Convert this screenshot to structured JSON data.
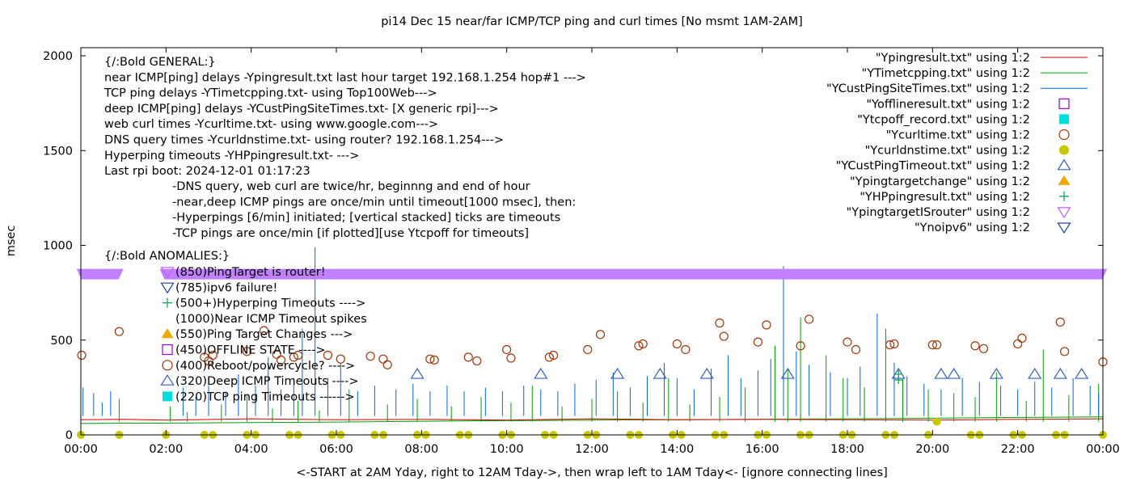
{
  "chart_data": {
    "type": "line",
    "title": "pi14 Dec 15  near/far ICMP/TCP ping and curl times [No msmt 1AM-2AM]",
    "xlabel": "<-START at 2AM Yday, right to 12AM Tday->, then wrap left to 1AM Tday<- [ignore connecting lines]",
    "ylabel": "msec",
    "xlim": [
      0,
      24
    ],
    "ylim": [
      0,
      2000
    ],
    "grid": false,
    "legend_position": "top-right",
    "x_ticks": [
      {
        "v": 0,
        "label": "00:00"
      },
      {
        "v": 2,
        "label": "02:00"
      },
      {
        "v": 4,
        "label": "04:00"
      },
      {
        "v": 6,
        "label": "06:00"
      },
      {
        "v": 8,
        "label": "08:00"
      },
      {
        "v": 10,
        "label": "10:00"
      },
      {
        "v": 12,
        "label": "12:00"
      },
      {
        "v": 14,
        "label": "14:00"
      },
      {
        "v": 16,
        "label": "16:00"
      },
      {
        "v": 18,
        "label": "18:00"
      },
      {
        "v": 20,
        "label": "20:00"
      },
      {
        "v": 22,
        "label": "22:00"
      },
      {
        "v": 24,
        "label": "00:00"
      }
    ],
    "y_ticks": [
      {
        "v": 0,
        "label": "0"
      },
      {
        "v": 500,
        "label": "500"
      },
      {
        "v": 1000,
        "label": "1000"
      },
      {
        "v": 1500,
        "label": "1500"
      },
      {
        "v": 2000,
        "label": "2000"
      }
    ],
    "legend": [
      {
        "label": "\"Ypingresult.txt\" using 1:2",
        "marker": "line",
        "color": "#cc0000"
      },
      {
        "label": "\"YTimetcpping.txt\" using 1:2",
        "marker": "line",
        "color": "#00a000"
      },
      {
        "label": "\"YCustPingSiteTimes.txt\" using 1:2",
        "marker": "line",
        "color": "#0066dd"
      },
      {
        "label": "\"Yofflineresult.txt\" using 1:2",
        "marker": "open-square",
        "color": "#9400d3"
      },
      {
        "label": "\"Ytcpoff_record.txt\" using 1:2",
        "marker": "filled-square",
        "color": "#00dddd"
      },
      {
        "label": "\"Ycurltime.txt\" using 1:2",
        "marker": "open-circle",
        "color": "#a0380a"
      },
      {
        "label": "\"Ycurldnstime.txt\" using 1:2",
        "marker": "filled-circle",
        "color": "#c8c800"
      },
      {
        "label": "\"YCustPingTimeout.txt\" using 1:2",
        "marker": "open-triangle-up",
        "color": "#3060c0"
      },
      {
        "label": "\"Ypingtargetchange\" using 1:2",
        "marker": "filled-triangle-up",
        "color": "#f0a800"
      },
      {
        "label": "\"YHPpingresult.txt\" using 1:2",
        "marker": "plus",
        "color": "#00a050"
      },
      {
        "label": "\"YpingtargetISrouter\" using 1:2",
        "marker": "open-triangle-down",
        "color": "#c060ff"
      },
      {
        "label": "\"Ynoipv6\" using 1:2",
        "marker": "open-triangle-down",
        "color": "#2040a0"
      }
    ],
    "annotation_lines": [
      "{/:Bold GENERAL:}",
      "near ICMP[ping] delays -Ypingresult.txt last hour target 192.168.1.254 hop#1 --->",
      "TCP ping delays -YTimetcpping.txt- using Top100Web--->",
      "deep ICMP[ping] delays -YCustPingSiteTimes.txt- [X generic rpi]--->",
      "web curl times -Ycurltime.txt- using www.google.com--->",
      "DNS query times -Ycurldnstime.txt- using router? 192.168.1.254--->",
      "Hyperping timeouts -YHPpingresult.txt- --->",
      "Last rpi boot: 2024-12-01 01:17:23"
    ],
    "annotation_notes": [
      "-DNS query, web curl are twice/hr, beginnng and end of hour",
      "-near,deep ICMP pings are once/min until timeout[1000 msec], then:",
      "  -Hyperpings [6/min] initiated; [vertical stacked] ticks are timeouts",
      "-TCP pings are once/min [if plotted][use Ytcpoff for timeouts]"
    ],
    "anomalies_heading": "{/:Bold ANOMALIES:}",
    "anomalies": [
      {
        "label": "(850)PingTarget is router!",
        "marker": "open-triangle-down",
        "color": "#c060ff",
        "y": 850
      },
      {
        "label": "(785)ipv6 failure!",
        "marker": "open-triangle-down",
        "color": "#2040a0",
        "y": 785
      },
      {
        "label": "(500+)Hyperping Timeouts ---->",
        "marker": "plus",
        "color": "#00a050",
        "y": 700
      },
      {
        "label": "(1000)Near ICMP Timeout spikes",
        "marker": "none",
        "color": "#000000",
        "y": 620
      },
      {
        "label": "(550)Ping Target Changes --->",
        "marker": "filled-triangle-up",
        "color": "#f0a800",
        "y": 550
      },
      {
        "label": "(450)OFFLINE STATE ---->",
        "marker": "open-square",
        "color": "#9400d3",
        "y": 450
      },
      {
        "label": "(400)Reboot/powercycle? ---->",
        "marker": "open-circle",
        "color": "#a0380a",
        "y": 400
      },
      {
        "label": "(320)Deep ICMP Timeouts ---->",
        "marker": "open-triangle-up",
        "color": "#3060c0",
        "y": 320
      },
      {
        "label": "(220)TCP ping Timeouts ------>",
        "marker": "filled-square",
        "color": "#00dddd",
        "y": 220
      }
    ],
    "router_band": {
      "y": 850,
      "color": "#c080ff",
      "segments": [
        [
          -0.1,
          1.0
        ],
        [
          1.85,
          24.1
        ]
      ]
    },
    "series": {
      "ping_baseline": [
        [
          0,
          80
        ],
        [
          1,
          82
        ],
        [
          2,
          78
        ],
        [
          4,
          85
        ],
        [
          6,
          80
        ],
        [
          8,
          82
        ],
        [
          10,
          78
        ],
        [
          12,
          85
        ],
        [
          14,
          80
        ],
        [
          16,
          82
        ],
        [
          18,
          80
        ],
        [
          20,
          78
        ],
        [
          22,
          82
        ],
        [
          24,
          85
        ]
      ],
      "tcp_baseline": [
        [
          0,
          60
        ],
        [
          1,
          62
        ],
        [
          1.85,
          62
        ],
        [
          4,
          65
        ],
        [
          6,
          68
        ],
        [
          8,
          72
        ],
        [
          10,
          75
        ],
        [
          12,
          78
        ],
        [
          14,
          80
        ],
        [
          16,
          82
        ],
        [
          18,
          85
        ],
        [
          20,
          88
        ],
        [
          22,
          92
        ],
        [
          24,
          95
        ]
      ],
      "tcp_spikes": [
        [
          0.9,
          190
        ],
        [
          2.1,
          150
        ],
        [
          2.5,
          120
        ],
        [
          3.3,
          160
        ],
        [
          3.9,
          210
        ],
        [
          4.5,
          140
        ],
        [
          5.1,
          180
        ],
        [
          5.6,
          130
        ],
        [
          6.3,
          240
        ],
        [
          7.2,
          160
        ],
        [
          7.9,
          190
        ],
        [
          8.7,
          150
        ],
        [
          9.4,
          200
        ],
        [
          10.1,
          170
        ],
        [
          10.6,
          260
        ],
        [
          11.3,
          150
        ],
        [
          12.0,
          190
        ],
        [
          12.6,
          230
        ],
        [
          13.2,
          170
        ],
        [
          13.8,
          300
        ],
        [
          14.3,
          160
        ],
        [
          15.0,
          200
        ],
        [
          15.6,
          250
        ],
        [
          16.3,
          470
        ],
        [
          16.6,
          350
        ],
        [
          16.9,
          620
        ],
        [
          17.5,
          420
        ],
        [
          17.9,
          300
        ],
        [
          18.4,
          250
        ],
        [
          18.9,
          560
        ],
        [
          19.3,
          300
        ],
        [
          19.9,
          240
        ],
        [
          20.5,
          220
        ],
        [
          21.0,
          200
        ],
        [
          21.5,
          330
        ],
        [
          22.2,
          180
        ],
        [
          22.6,
          450
        ],
        [
          23.2,
          210
        ],
        [
          23.9,
          270
        ]
      ],
      "deep_ping_spikes": [
        [
          0.05,
          250
        ],
        [
          0.3,
          220
        ],
        [
          0.5,
          170
        ],
        [
          0.7,
          230
        ],
        [
          2.4,
          250
        ],
        [
          2.7,
          200
        ],
        [
          3.0,
          260
        ],
        [
          3.4,
          230
        ],
        [
          3.7,
          320
        ],
        [
          4.1,
          260
        ],
        [
          4.4,
          410
        ],
        [
          4.7,
          240
        ],
        [
          5.0,
          300
        ],
        [
          5.2,
          560
        ],
        [
          5.5,
          990
        ],
        [
          5.8,
          300
        ],
        [
          6.1,
          380
        ],
        [
          6.5,
          230
        ],
        [
          6.9,
          260
        ],
        [
          7.4,
          240
        ],
        [
          7.8,
          270
        ],
        [
          8.2,
          230
        ],
        [
          8.6,
          260
        ],
        [
          9.0,
          230
        ],
        [
          9.5,
          250
        ],
        [
          9.9,
          230
        ],
        [
          10.4,
          260
        ],
        [
          10.8,
          240
        ],
        [
          11.2,
          230
        ],
        [
          11.6,
          270
        ],
        [
          12.1,
          290
        ],
        [
          12.5,
          330
        ],
        [
          12.9,
          250
        ],
        [
          13.3,
          310
        ],
        [
          13.7,
          380
        ],
        [
          14.0,
          300
        ],
        [
          14.4,
          240
        ],
        [
          14.8,
          350
        ],
        [
          15.2,
          420
        ],
        [
          15.5,
          300
        ],
        [
          15.9,
          340
        ],
        [
          16.2,
          400
        ],
        [
          16.5,
          890
        ],
        [
          16.8,
          440
        ],
        [
          17.1,
          370
        ],
        [
          17.6,
          330
        ],
        [
          18.0,
          300
        ],
        [
          18.3,
          360
        ],
        [
          18.7,
          640
        ],
        [
          19.1,
          380
        ],
        [
          19.4,
          310
        ],
        [
          19.8,
          270
        ],
        [
          20.2,
          240
        ],
        [
          20.7,
          300
        ],
        [
          21.1,
          280
        ],
        [
          21.6,
          260
        ],
        [
          22.0,
          240
        ],
        [
          22.4,
          280
        ],
        [
          22.8,
          250
        ],
        [
          23.3,
          300
        ],
        [
          23.7,
          260
        ],
        [
          23.9,
          220
        ]
      ],
      "curl_times": [
        [
          0.02,
          420
        ],
        [
          0.9,
          545
        ],
        [
          2.9,
          410
        ],
        [
          3.0,
          390
        ],
        [
          3.1,
          420
        ],
        [
          3.9,
          440
        ],
        [
          4.3,
          550
        ],
        [
          4.6,
          425
        ],
        [
          4.7,
          395
        ],
        [
          5.0,
          410
        ],
        [
          5.1,
          420
        ],
        [
          5.8,
          420
        ],
        [
          6.1,
          400
        ],
        [
          6.8,
          415
        ],
        [
          7.1,
          400
        ],
        [
          7.2,
          370
        ],
        [
          8.2,
          400
        ],
        [
          8.3,
          395
        ],
        [
          9.1,
          410
        ],
        [
          9.3,
          390
        ],
        [
          10.0,
          450
        ],
        [
          10.1,
          405
        ],
        [
          11.0,
          410
        ],
        [
          11.1,
          420
        ],
        [
          11.9,
          450
        ],
        [
          12.2,
          530
        ],
        [
          13.1,
          470
        ],
        [
          13.2,
          480
        ],
        [
          14.0,
          480
        ],
        [
          14.2,
          450
        ],
        [
          15.0,
          590
        ],
        [
          15.1,
          520
        ],
        [
          15.9,
          490
        ],
        [
          16.1,
          580
        ],
        [
          16.9,
          470
        ],
        [
          17.1,
          610
        ],
        [
          18.0,
          490
        ],
        [
          18.2,
          450
        ],
        [
          19.0,
          475
        ],
        [
          19.1,
          480
        ],
        [
          20.0,
          475
        ],
        [
          20.1,
          475
        ],
        [
          21.0,
          470
        ],
        [
          21.2,
          455
        ],
        [
          22.0,
          480
        ],
        [
          22.1,
          510
        ],
        [
          23.0,
          595
        ],
        [
          23.1,
          440
        ],
        [
          24.0,
          385
        ]
      ],
      "dns_times": [
        [
          0,
          0
        ],
        [
          0.9,
          0
        ],
        [
          2.0,
          0
        ],
        [
          2.9,
          0
        ],
        [
          3.1,
          0
        ],
        [
          3.9,
          0
        ],
        [
          4.1,
          0
        ],
        [
          4.9,
          0
        ],
        [
          5.1,
          0
        ],
        [
          5.9,
          0
        ],
        [
          6.1,
          0
        ],
        [
          6.9,
          0
        ],
        [
          7.1,
          0
        ],
        [
          7.9,
          0
        ],
        [
          8.1,
          0
        ],
        [
          8.9,
          0
        ],
        [
          9.1,
          0
        ],
        [
          9.9,
          0
        ],
        [
          10.1,
          0
        ],
        [
          10.9,
          0
        ],
        [
          11.1,
          0
        ],
        [
          11.9,
          0
        ],
        [
          12.1,
          0
        ],
        [
          12.9,
          0
        ],
        [
          13.1,
          0
        ],
        [
          13.9,
          0
        ],
        [
          14.1,
          0
        ],
        [
          14.9,
          0
        ],
        [
          15.1,
          0
        ],
        [
          15.9,
          0
        ],
        [
          16.1,
          0
        ],
        [
          16.9,
          0
        ],
        [
          17.1,
          0
        ],
        [
          17.9,
          0
        ],
        [
          18.1,
          0
        ],
        [
          18.9,
          0
        ],
        [
          19.1,
          0
        ],
        [
          19.9,
          0
        ],
        [
          20.1,
          70
        ],
        [
          20.9,
          0
        ],
        [
          21.1,
          0
        ],
        [
          21.9,
          0
        ],
        [
          22.1,
          0
        ],
        [
          22.9,
          0
        ],
        [
          23.1,
          0
        ],
        [
          24.0,
          0
        ]
      ],
      "deep_ping_timeouts": [
        [
          7.9,
          320
        ],
        [
          10.8,
          320
        ],
        [
          12.6,
          320
        ],
        [
          13.6,
          320
        ],
        [
          14.7,
          320
        ],
        [
          16.6,
          320
        ],
        [
          19.2,
          320
        ],
        [
          20.2,
          320
        ],
        [
          20.5,
          320
        ],
        [
          21.5,
          320
        ],
        [
          22.4,
          320
        ],
        [
          23.0,
          320
        ],
        [
          23.5,
          320
        ]
      ],
      "hyperping_timeouts": [
        [
          19.2,
          320
        ],
        [
          19.2,
          290
        ]
      ]
    }
  }
}
